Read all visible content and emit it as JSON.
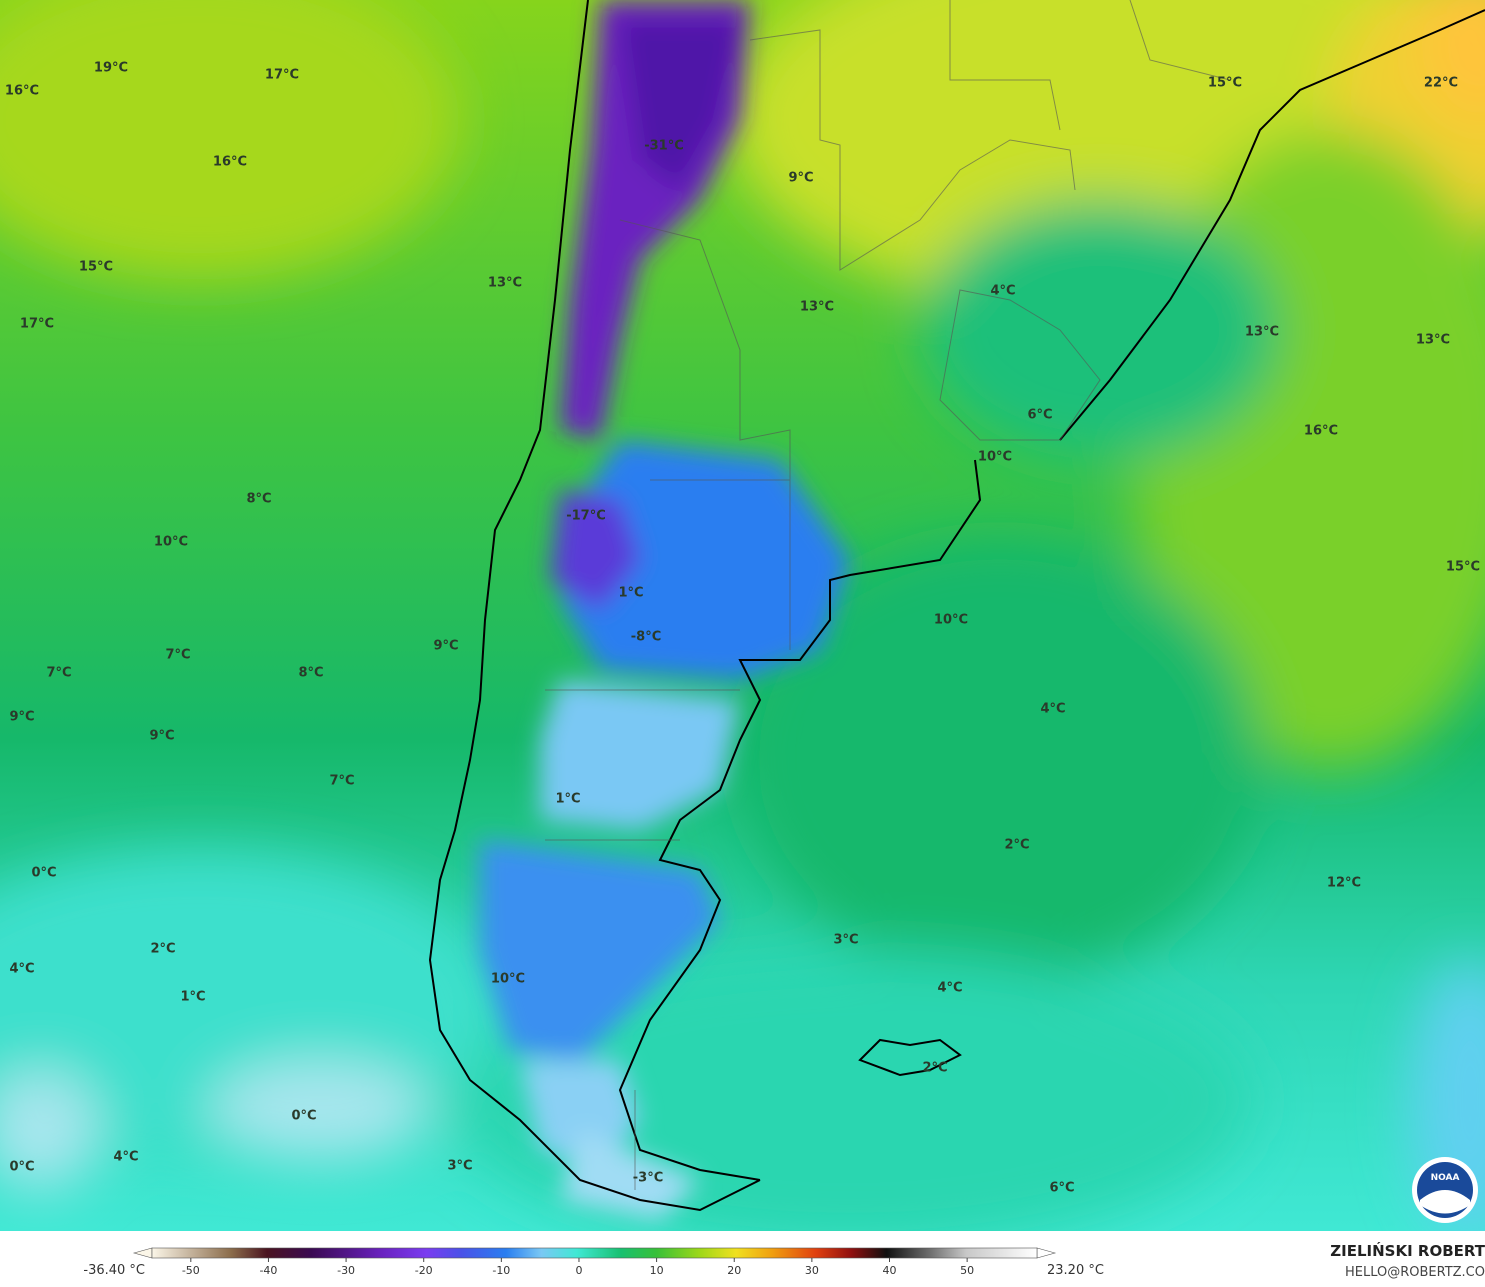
{
  "map": {
    "labels": [
      "19°C",
      "17°C",
      "16°C",
      "16°C",
      "15°C",
      "13°C",
      "17°C",
      "8°C",
      "10°C",
      "7°C",
      "7°C",
      "8°C",
      "9°C",
      "9°C",
      "9°C",
      "7°C",
      "0°C",
      "2°C",
      "4°C",
      "1°C",
      "0°C",
      "4°C",
      "0°C",
      "3°C",
      "-31°C",
      "9°C",
      "13°C",
      "-17°C",
      "1°C",
      "-8°C",
      "1°C",
      "10°C",
      "-3°C",
      "15°C",
      "22°C",
      "4°C",
      "13°C",
      "13°C",
      "6°C",
      "16°C",
      "10°C",
      "15°C",
      "10°C",
      "4°C",
      "2°C",
      "12°C",
      "3°C",
      "4°C",
      "2°C",
      "6°C"
    ],
    "colorbar": {
      "min_label": "-36.40 °C",
      "max_label": "23.20 °C",
      "range": [
        -55,
        59
      ],
      "ticks": [
        -50,
        -40,
        -30,
        -20,
        -10,
        0,
        10,
        20,
        30,
        40,
        50
      ]
    },
    "author": "ZIELIŃSKI ROBERT",
    "contact": "HELLO@ROBERTZ.CO",
    "logo": "NOAA"
  }
}
